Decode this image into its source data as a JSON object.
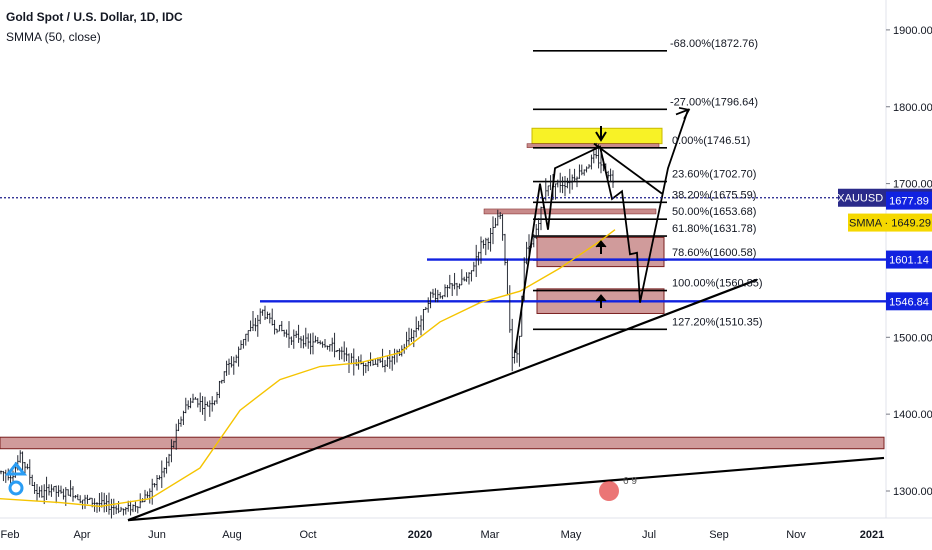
{
  "header": {
    "symbol_title": "Gold Spot / U.S. Dollar, 1D, IDC",
    "indicator": "SMMA (50, close)"
  },
  "colors": {
    "price_bar": "#131722",
    "smma": "#f5c400",
    "support_line": "#1122e0",
    "zone_fill": "#c88a8a",
    "zone_border": "#7a1f1f",
    "highlight": "#f7f000",
    "current_price_line": "#1d1d8a",
    "tag_bg_blue": "#1122e0",
    "tag_bg_current": "#2a2a8a",
    "tag_bg_smma": "#f5d800"
  },
  "chart_data": {
    "type": "candlestick",
    "title": "Gold Spot / U.S. Dollar, 1D, IDC",
    "indicator": "SMMA (50, close)",
    "x_ticks": [
      "Feb",
      "Apr",
      "Jun",
      "Aug",
      "Oct",
      "2020",
      "Mar",
      "May",
      "Jul",
      "Sep",
      "Nov",
      "2021"
    ],
    "y_ticks": [
      "1300.00",
      "1400.00",
      "1500.00",
      "1600.00",
      "1700.00",
      "1800.00",
      "1900.00"
    ],
    "ylim": [
      1262,
      1940
    ],
    "price_path": [
      [
        0,
        1325
      ],
      [
        12,
        1320
      ],
      [
        20,
        1345
      ],
      [
        28,
        1325
      ],
      [
        35,
        1300
      ],
      [
        42,
        1295
      ],
      [
        50,
        1305
      ],
      [
        60,
        1295
      ],
      [
        70,
        1300
      ],
      [
        80,
        1290
      ],
      [
        95,
        1285
      ],
      [
        110,
        1280
      ],
      [
        125,
        1275
      ],
      [
        140,
        1285
      ],
      [
        150,
        1300
      ],
      [
        165,
        1330
      ],
      [
        175,
        1370
      ],
      [
        185,
        1410
      ],
      [
        195,
        1420
      ],
      [
        205,
        1410
      ],
      [
        215,
        1420
      ],
      [
        225,
        1460
      ],
      [
        235,
        1470
      ],
      [
        245,
        1505
      ],
      [
        255,
        1515
      ],
      [
        262,
        1535
      ],
      [
        270,
        1520
      ],
      [
        280,
        1510
      ],
      [
        290,
        1500
      ],
      [
        300,
        1500
      ],
      [
        310,
        1490
      ],
      [
        320,
        1495
      ],
      [
        330,
        1490
      ],
      [
        340,
        1480
      ],
      [
        350,
        1470
      ],
      [
        360,
        1465
      ],
      [
        370,
        1470
      ],
      [
        380,
        1465
      ],
      [
        390,
        1470
      ],
      [
        400,
        1480
      ],
      [
        410,
        1500
      ],
      [
        420,
        1520
      ],
      [
        430,
        1555
      ],
      [
        440,
        1555
      ],
      [
        450,
        1565
      ],
      [
        460,
        1570
      ],
      [
        470,
        1580
      ],
      [
        480,
        1620
      ],
      [
        490,
        1630
      ],
      [
        500,
        1660
      ],
      [
        505,
        1600
      ],
      [
        512,
        1475
      ],
      [
        518,
        1480
      ],
      [
        525,
        1610
      ],
      [
        532,
        1620
      ],
      [
        540,
        1660
      ],
      [
        547,
        1700
      ],
      [
        555,
        1700
      ],
      [
        565,
        1700
      ],
      [
        575,
        1710
      ],
      [
        585,
        1720
      ],
      [
        595,
        1735
      ],
      [
        605,
        1720
      ],
      [
        613,
        1705
      ]
    ],
    "smma_path": [
      [
        0,
        1290
      ],
      [
        60,
        1285
      ],
      [
        100,
        1280
      ],
      [
        150,
        1290
      ],
      [
        200,
        1330
      ],
      [
        240,
        1405
      ],
      [
        280,
        1445
      ],
      [
        320,
        1462
      ],
      [
        360,
        1467
      ],
      [
        400,
        1480
      ],
      [
        440,
        1520
      ],
      [
        480,
        1545
      ],
      [
        520,
        1560
      ],
      [
        560,
        1590
      ],
      [
        600,
        1625
      ],
      [
        615,
        1640
      ]
    ],
    "fibonacci": {
      "levels": [
        {
          "label": "-68.00%(1872.76)",
          "price": 1872.76
        },
        {
          "label": "-27.00%(1796.64)",
          "price": 1796.64
        },
        {
          "label": "0.00%(1746.51)",
          "price": 1746.51
        },
        {
          "label": "23.60%(1702.70)",
          "price": 1702.7
        },
        {
          "label": "38.20%(1675.59)",
          "price": 1675.59
        },
        {
          "label": "50.00%(1653.68)",
          "price": 1653.68
        },
        {
          "label": "61.80%(1631.78)",
          "price": 1631.78
        },
        {
          "label": "78.60%(1600.58)",
          "price": 1600.58
        },
        {
          "label": "100.00%(1560.85)",
          "price": 1560.85
        },
        {
          "label": "127.20%(1510.35)",
          "price": 1510.35
        }
      ]
    },
    "support_lines": [
      1601.14,
      1546.84
    ],
    "price_tags": [
      {
        "text": "XAUUSD · 1681.60",
        "price": 1681.6,
        "style": "current"
      },
      {
        "text": "1677.89",
        "price": 1677.89,
        "style": "blue"
      },
      {
        "text": "SMMA · 1649.29",
        "price": 1649.29,
        "style": "smma"
      },
      {
        "text": "1601.14",
        "price": 1601.14,
        "style": "blue"
      },
      {
        "text": "1546.84",
        "price": 1546.84,
        "style": "blue"
      }
    ],
    "zones": [
      {
        "name": "top-yellow",
        "price_top": 1772,
        "price_bottom": 1752
      },
      {
        "name": "zone-1600",
        "price_top": 1630,
        "price_bottom": 1592
      },
      {
        "name": "zone-1560",
        "price_top": 1563,
        "price_bottom": 1531
      },
      {
        "name": "zone-1360",
        "price_top": 1370,
        "price_bottom": 1355
      }
    ],
    "trendlines": [
      {
        "from": [
          1262,
          "Apr"
        ],
        "to": [
          1343,
          "2021"
        ]
      },
      {
        "from": [
          1262,
          "May"
        ],
        "to": [
          1575,
          "Sep"
        ]
      }
    ],
    "legend_watermark": "6 9"
  }
}
